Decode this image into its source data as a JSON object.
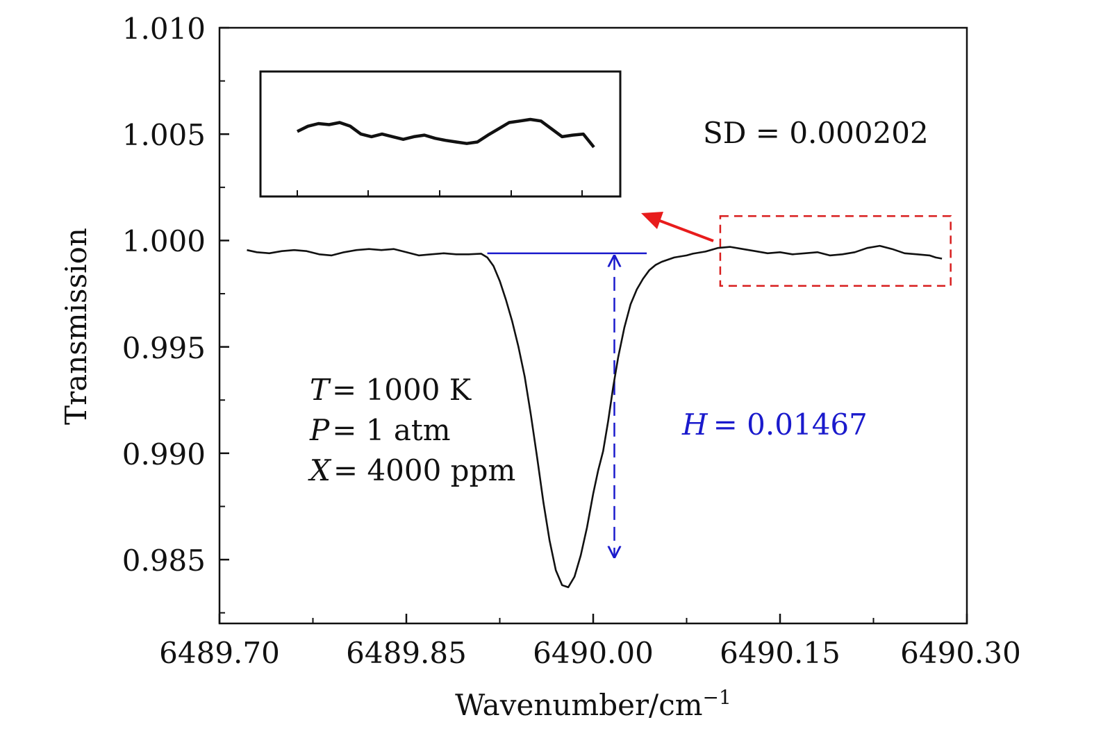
{
  "chart_data": {
    "type": "line",
    "xlabel": "Wavenumber/cm",
    "xlabel_superscript": "−1",
    "ylabel": "Transmission",
    "xlim": [
      6489.7,
      6490.3
    ],
    "ylim": [
      0.982,
      1.01
    ],
    "x_ticks": [
      "6489.70",
      "6489.85",
      "6490.00",
      "6490.15",
      "6490.30"
    ],
    "y_ticks": [
      "1.010",
      "1.005",
      "1.000",
      "0.995",
      "0.990",
      "0.985"
    ],
    "y_tick_values": [
      1.01,
      1.005,
      1.0,
      0.995,
      0.99,
      0.985
    ],
    "x_tick_values": [
      6489.7,
      6489.85,
      6490.0,
      6490.15,
      6490.3
    ],
    "series": [
      {
        "name": "Transmission",
        "color": "#111111",
        "x": [
          6489.722,
          6489.73,
          6489.74,
          6489.75,
          6489.76,
          6489.77,
          6489.78,
          6489.79,
          6489.8,
          6489.81,
          6489.82,
          6489.83,
          6489.84,
          6489.85,
          6489.86,
          6489.87,
          6489.88,
          6489.89,
          6489.9,
          6489.91,
          6489.915,
          6489.92,
          6489.925,
          6489.93,
          6489.935,
          6489.94,
          6489.945,
          6489.95,
          6489.955,
          6489.96,
          6489.965,
          6489.97,
          6489.975,
          6489.98,
          6489.985,
          6489.99,
          6489.995,
          6490.0,
          6490.004,
          6490.008,
          6490.012,
          6490.016,
          6490.02,
          6490.025,
          6490.03,
          6490.035,
          6490.04,
          6490.045,
          6490.05,
          6490.055,
          6490.06,
          6490.065,
          6490.07,
          6490.075,
          6490.08,
          6490.09,
          6490.1,
          6490.11,
          6490.12,
          6490.13,
          6490.14,
          6490.15,
          6490.16,
          6490.17,
          6490.18,
          6490.19,
          6490.2,
          6490.21,
          6490.22,
          6490.23,
          6490.24,
          6490.25,
          6490.26,
          6490.27,
          6490.275,
          6490.28
        ],
        "y": [
          0.99955,
          0.99945,
          0.9994,
          0.9995,
          0.99955,
          0.9995,
          0.99935,
          0.9993,
          0.99945,
          0.99955,
          0.9996,
          0.99955,
          0.9996,
          0.99945,
          0.9993,
          0.99935,
          0.9994,
          0.99935,
          0.99935,
          0.99938,
          0.9992,
          0.9988,
          0.9981,
          0.9972,
          0.9962,
          0.995,
          0.9936,
          0.9918,
          0.9898,
          0.9877,
          0.9859,
          0.9845,
          0.9838,
          0.9837,
          0.9842,
          0.9852,
          0.9865,
          0.9881,
          0.9892,
          0.9901,
          0.9915,
          0.9931,
          0.9945,
          0.9959,
          0.997,
          0.9977,
          0.9982,
          0.9986,
          0.99885,
          0.999,
          0.9991,
          0.9992,
          0.99925,
          0.9993,
          0.99938,
          0.99948,
          0.99965,
          0.9997,
          0.9996,
          0.9995,
          0.9994,
          0.99945,
          0.99935,
          0.9994,
          0.99945,
          0.9993,
          0.99935,
          0.99945,
          0.99965,
          0.99975,
          0.9996,
          0.9994,
          0.99935,
          0.9993,
          0.9992,
          0.99915
        ]
      }
    ],
    "baseline": {
      "x_start": 6489.915,
      "x_end": 6490.043,
      "y": 0.9994,
      "color": "#1a1acc"
    },
    "depth_marker": {
      "x": 6490.017,
      "y_top": 0.9994,
      "y_bottom": 0.985,
      "style": "dashed double arrow",
      "color": "#1a1acc"
    },
    "highlight_box": {
      "x_range": [
        6490.102,
        6490.287
      ],
      "y_range": [
        0.99787,
        1.00115
      ],
      "style": "dashed",
      "color": "#d81e1e"
    },
    "inset": {
      "description": "zoom of highlighted region",
      "values": [
        0.99935,
        0.99945,
        0.9995,
        0.99948,
        0.99952,
        0.99945,
        0.9993,
        0.99925,
        0.9993,
        0.99925,
        0.9992,
        0.99925,
        0.99928,
        0.99922,
        0.99918,
        0.99915,
        0.99912,
        0.99915,
        0.99928,
        0.9994,
        0.99952,
        0.99955,
        0.99958,
        0.99955,
        0.9994,
        0.99925,
        0.99928,
        0.9993,
        0.99905
      ]
    },
    "annotations": {
      "sd_text": "SD = 0.000202",
      "h_label": "H",
      "h_value": "= 0.01467",
      "t_label": "T",
      "t_value": "= 1000 K",
      "p_label": "P",
      "p_value": "= 1 atm",
      "x_label": "X",
      "x_value": "= 4000 ppm"
    },
    "grid": false,
    "legend": "none"
  }
}
